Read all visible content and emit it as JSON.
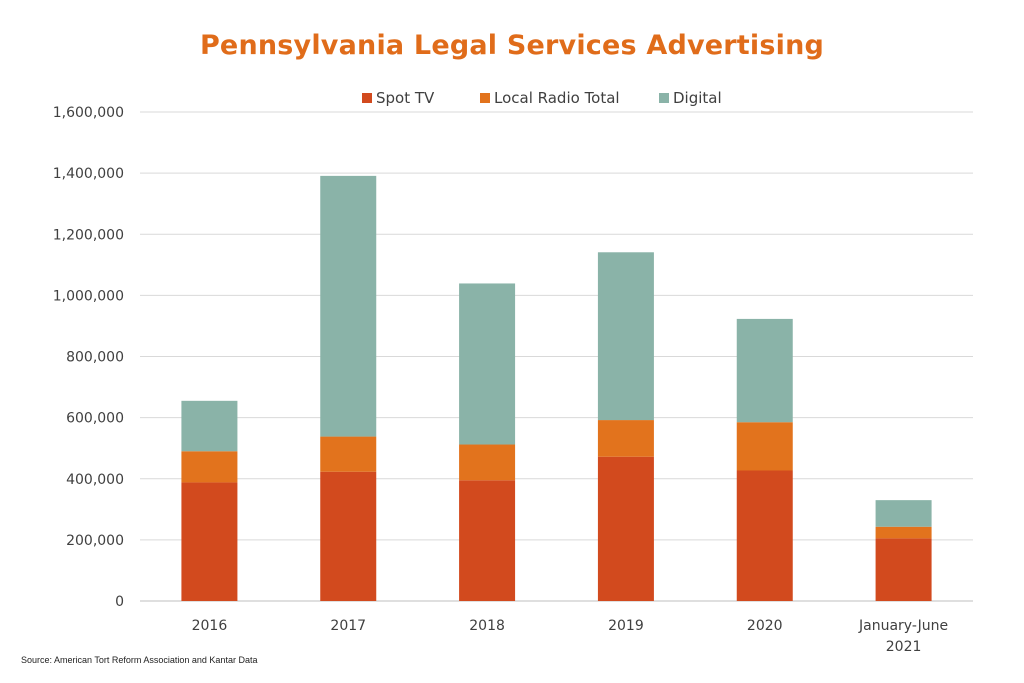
{
  "chart_data": {
    "type": "bar",
    "stacked": true,
    "title": "Pennsylvania Legal Services Advertising",
    "categories": [
      "2016",
      "2017",
      "2018",
      "2019",
      "2020",
      "January-June 2021"
    ],
    "category_lines": [
      [
        "2016"
      ],
      [
        "2017"
      ],
      [
        "2018"
      ],
      [
        "2019"
      ],
      [
        "2020"
      ],
      [
        "January-June",
        "2021"
      ]
    ],
    "series": [
      {
        "name": "Spot TV",
        "color": "#D24A1E",
        "values": [
          388000,
          423000,
          395000,
          472000,
          427000,
          205000
        ]
      },
      {
        "name": "Local Radio Total",
        "color": "#E2731D",
        "values": [
          102000,
          115000,
          117000,
          120000,
          158000,
          38000
        ]
      },
      {
        "name": "Digital",
        "color": "#8AB3A8",
        "values": [
          165000,
          853000,
          527000,
          549000,
          338000,
          87000
        ]
      }
    ],
    "ylim": [
      0,
      1600000
    ],
    "yticks": [
      "0",
      "200,000",
      "400,000",
      "600,000",
      "800,000",
      "1,000,000",
      "1,200,000",
      "1,400,000",
      "1,600,000"
    ],
    "ytick_values": [
      0,
      200000,
      400000,
      600000,
      800000,
      1000000,
      1200000,
      1400000,
      1600000
    ],
    "grid": true,
    "legend_position": "top-center",
    "xlabel": "",
    "ylabel": ""
  },
  "source": "Source: American Tort Reform Association and Kantar Data"
}
